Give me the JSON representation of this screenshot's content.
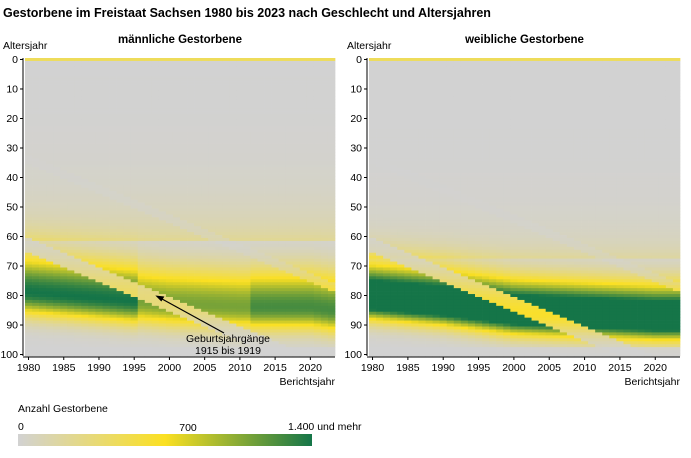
{
  "title": "Gestorbene im Freistaat Sachsen 1980 bis 2023 nach Geschlecht und Altersjahren",
  "chart_data": [
    {
      "type": "heatmap",
      "title": "männliche Gestorbene",
      "ylabel": "Altersjahr",
      "xlabel": "Berichtsjahr",
      "xlim": [
        1980,
        2023
      ],
      "ylim": [
        0,
        100
      ],
      "x_ticks": [
        "1980",
        "1985",
        "1990",
        "1995",
        "2000",
        "2005",
        "2010",
        "2015",
        "2020"
      ],
      "y_ticks": [
        "0",
        "10",
        "20",
        "30",
        "40",
        "50",
        "60",
        "70",
        "80",
        "90",
        "100"
      ],
      "peak_age_by_year": [
        {
          "x": 1980,
          "y": 79
        },
        {
          "x": 1990,
          "y": 81
        },
        {
          "x": 2000,
          "y": 83
        },
        {
          "x": 2010,
          "y": 84
        },
        {
          "x": 2020,
          "y": 84
        },
        {
          "x": 2023,
          "y": 85
        }
      ],
      "annotation": {
        "line1": "Geburtsjahrgänge",
        "line2": "1915 bis 1919",
        "arrow_to": {
          "x": 1998,
          "y": 80
        }
      }
    },
    {
      "type": "heatmap",
      "title": "weibliche Gestorbene",
      "ylabel": "Altersjahr",
      "xlabel": "Berichtsjahr",
      "xlim": [
        1980,
        2023
      ],
      "ylim": [
        0,
        100
      ],
      "x_ticks": [
        "1980",
        "1985",
        "1990",
        "1995",
        "2000",
        "2005",
        "2010",
        "2015",
        "2020"
      ],
      "y_ticks": [
        "0",
        "10",
        "20",
        "30",
        "40",
        "50",
        "60",
        "70",
        "80",
        "90",
        "100"
      ],
      "peak_age_by_year": [
        {
          "x": 1980,
          "y": 81
        },
        {
          "x": 1990,
          "y": 83
        },
        {
          "x": 2000,
          "y": 86
        },
        {
          "x": 2010,
          "y": 87
        },
        {
          "x": 2020,
          "y": 88
        },
        {
          "x": 2023,
          "y": 88
        }
      ]
    }
  ],
  "legend": {
    "title": "Anzahl Gestorbene",
    "min_label": "0",
    "mid_label": "700",
    "max_label": "1.400 und mehr",
    "range": [
      0,
      1400
    ],
    "colors": [
      "#d2d2d2",
      "#fbe022",
      "#157548"
    ]
  }
}
